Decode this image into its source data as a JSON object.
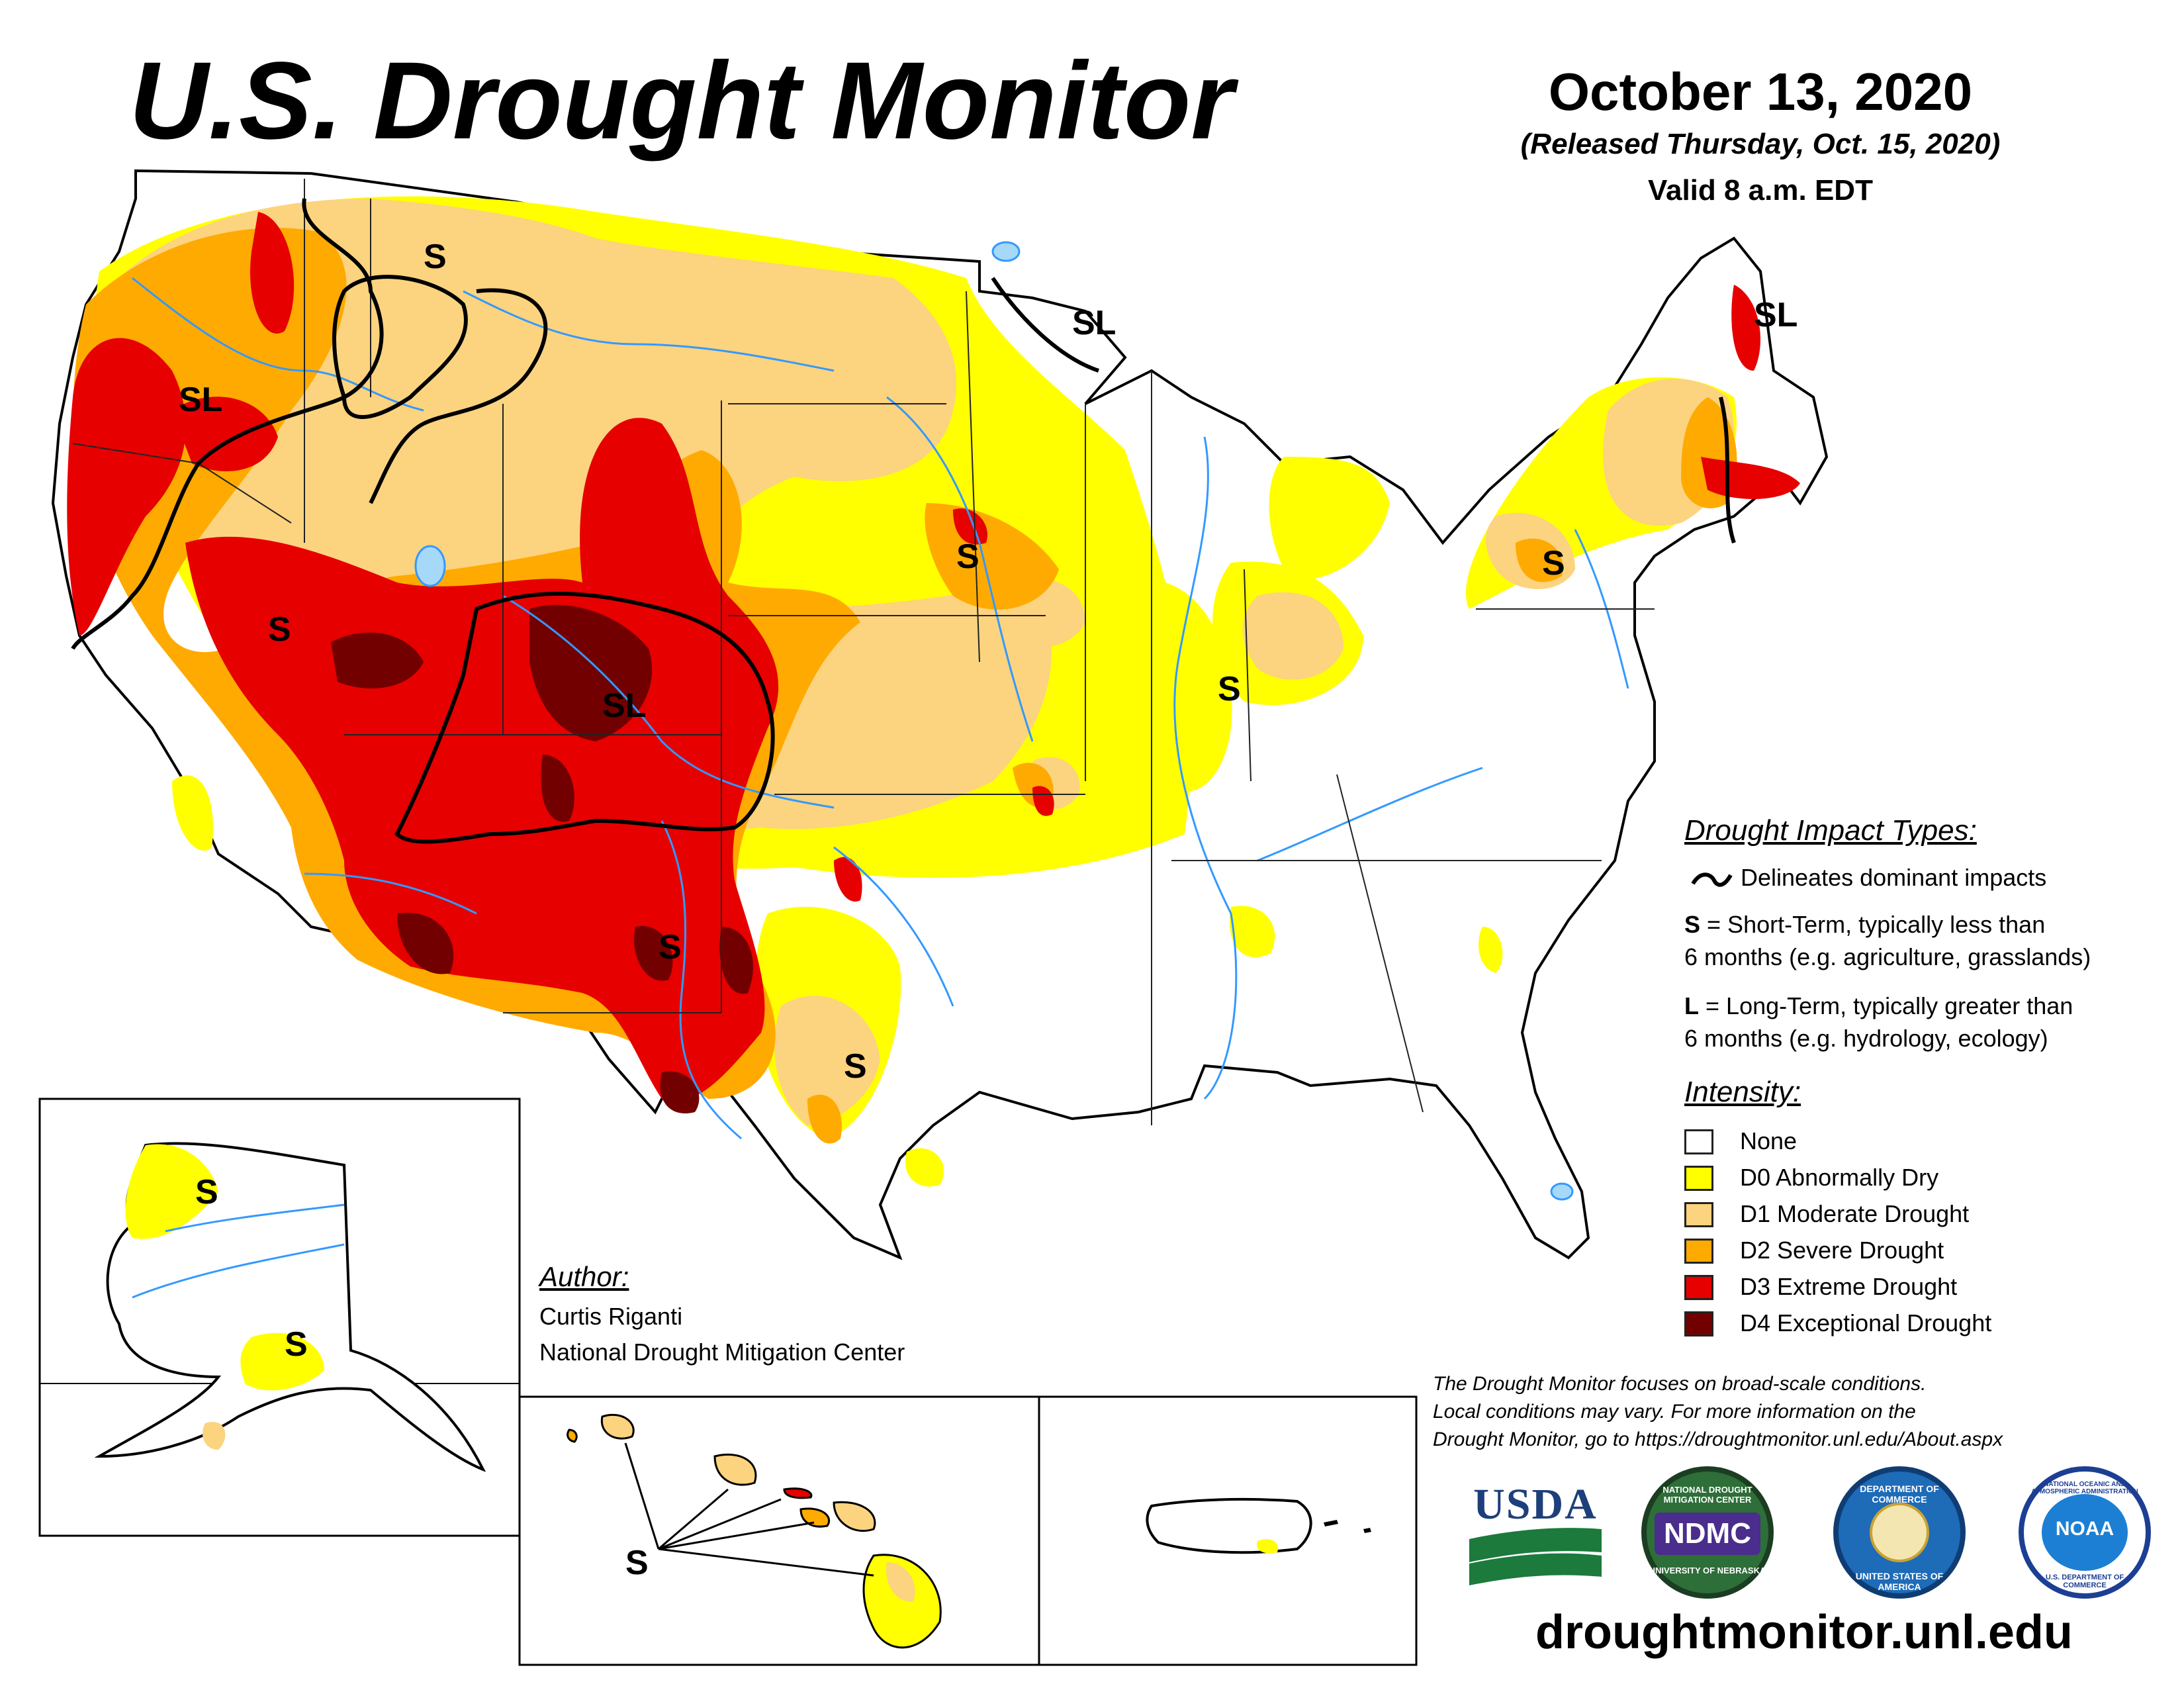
{
  "title": "U.S. Drought Monitor",
  "date": "October 13, 2020",
  "released": "(Released Thursday, Oct. 15, 2020)",
  "valid": "Valid 8 a.m. EDT",
  "map_labels": {
    "pacific_nw": "SL",
    "montana": "S",
    "great_basin": "S",
    "colorado": "SL",
    "new_mexico": "S",
    "texas": "S",
    "iowa": "S",
    "illinois": "S",
    "pennsylvania": "S",
    "minnesota": "SL",
    "maine": "SL",
    "alaska_north": "S",
    "alaska_south": "S",
    "hawaii": "S"
  },
  "impact_types": {
    "heading": "Drought Impact Types:",
    "delineates": "Delineates dominant impacts",
    "short_term_key": "S",
    "short_term_line1": "= Short-Term, typically less than",
    "short_term_line2": "6 months (e.g. agriculture, grasslands)",
    "long_term_key": "L",
    "long_term_line1": "= Long-Term, typically greater than",
    "long_term_line2": "6 months (e.g. hydrology, ecology)"
  },
  "intensity": {
    "heading": "Intensity:",
    "levels": [
      {
        "label": "None",
        "color": "#ffffff"
      },
      {
        "label": "D0 Abnormally Dry",
        "color": "#ffff00"
      },
      {
        "label": "D1 Moderate Drought",
        "color": "#fcd37f"
      },
      {
        "label": "D2 Severe Drought",
        "color": "#ffaa00"
      },
      {
        "label": "D3 Extreme Drought",
        "color": "#e60000"
      },
      {
        "label": "D4 Exceptional Drought",
        "color": "#730000"
      }
    ]
  },
  "author": {
    "heading": "Author:",
    "name": "Curtis Riganti",
    "org": "National Drought Mitigation Center"
  },
  "disclaimer": {
    "line1": "The Drought Monitor focuses on broad-scale conditions.",
    "line2": "Local conditions may vary. For more information on the",
    "line3": "Drought Monitor, go to https://droughtmonitor.unl.edu/About.aspx"
  },
  "logos": {
    "usda": "USDA",
    "ndmc": "NDMC",
    "ndmc_ring_top": "NATIONAL DROUGHT MITIGATION CENTER",
    "ndmc_ring_bottom": "UNIVERSITY OF NEBRASKA",
    "commerce_ring_top": "DEPARTMENT OF COMMERCE",
    "commerce_ring_bottom": "UNITED STATES OF AMERICA",
    "noaa": "NOAA",
    "noaa_ring": "NATIONAL OCEANIC AND ATMOSPHERIC ADMINISTRATION",
    "noaa_ring_bottom": "U.S. DEPARTMENT OF COMMERCE"
  },
  "website": "droughtmonitor.unl.edu",
  "colors": {
    "none": "#ffffff",
    "d0": "#ffff00",
    "d1": "#fcd37f",
    "d2": "#ffaa00",
    "d3": "#e60000",
    "d4": "#730000",
    "water": "#3399ff",
    "lake": "#a6d8f7"
  }
}
